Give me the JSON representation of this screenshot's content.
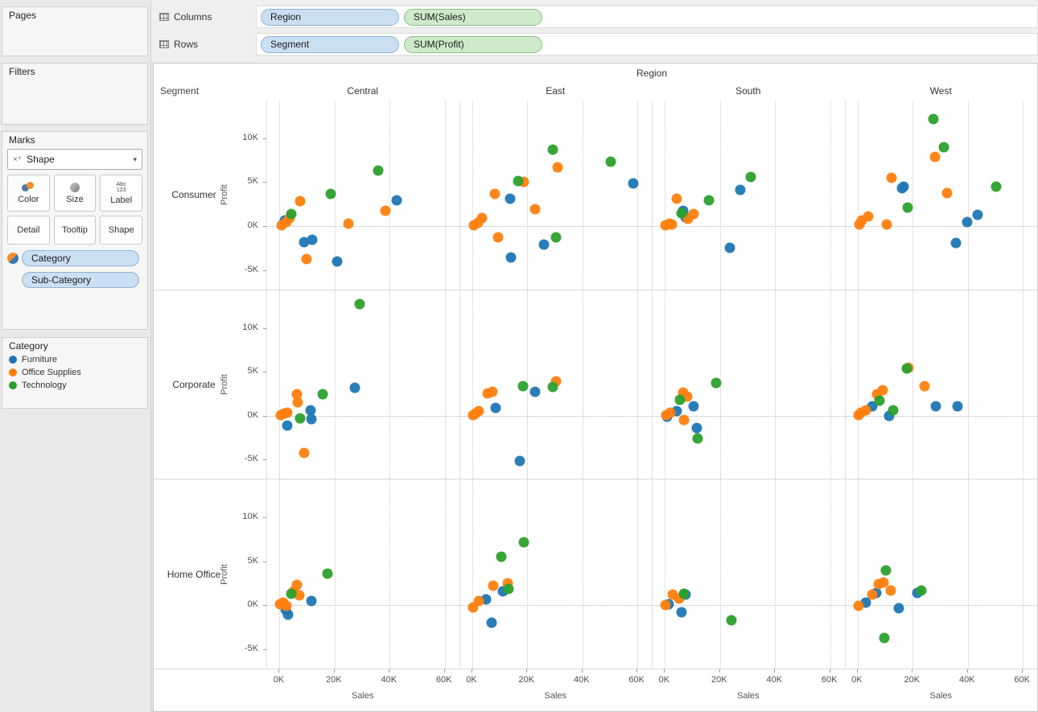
{
  "sidebar": {
    "pages_title": "Pages",
    "filters_title": "Filters",
    "marks_title": "Marks",
    "mark_type_label": "Shape",
    "mark_glyph": "×⁺",
    "chevron_glyph": "▾",
    "mark_buttons_row1": [
      {
        "label": "Color",
        "icon": "color-wheel-icon"
      },
      {
        "label": "Size",
        "icon": "size-icon"
      },
      {
        "label": "Label",
        "icon": "label-icon"
      }
    ],
    "mark_buttons_row2": [
      {
        "label": "Detail"
      },
      {
        "label": "Tooltip"
      },
      {
        "label": "Shape"
      }
    ],
    "mark_pills": [
      {
        "label": "Category",
        "has_color_icon": true
      },
      {
        "label": "Sub-Category",
        "has_color_icon": false
      }
    ],
    "legend": {
      "title": "Category",
      "items": [
        {
          "label": "Furniture",
          "color": "#1f77b4"
        },
        {
          "label": "Office Supplies",
          "color": "#ff7f0e"
        },
        {
          "label": "Technology",
          "color": "#2ca02c"
        }
      ]
    }
  },
  "shelves": {
    "columns_label": "Columns",
    "rows_label": "Rows",
    "columns_pills": [
      {
        "label": "Region",
        "type": "dimension"
      },
      {
        "label": "SUM(Sales)",
        "type": "measure"
      }
    ],
    "rows_pills": [
      {
        "label": "Segment",
        "type": "dimension"
      },
      {
        "label": "SUM(Profit)",
        "type": "measure"
      }
    ]
  },
  "chart_data": {
    "type": "scatter",
    "facet_col_title": "Region",
    "facet_row_title": "Segment",
    "columns": [
      "Central",
      "East",
      "South",
      "West"
    ],
    "rows": [
      "Consumer",
      "Corporate",
      "Home Office"
    ],
    "xlabel": "Sales",
    "ylabel": "Profit",
    "x_ticks": [
      0,
      20000,
      40000,
      60000
    ],
    "x_tick_labels": [
      "0K",
      "20K",
      "40K",
      "60K"
    ],
    "y_ticks": [
      -5000,
      0,
      5000,
      10000
    ],
    "y_tick_labels": [
      "-5K",
      "0K",
      "5K",
      "10K"
    ],
    "xlim": [
      -4500,
      65500
    ],
    "ylim": [
      -7300,
      14300
    ],
    "grid": "dotted verticals at x ticks, dotted zero line",
    "legend_position": "left sidebar",
    "series_colors": {
      "Furniture": "#1f77b4",
      "Office Supplies": "#ff7f0e",
      "Technology": "#2ca02c"
    },
    "panels": [
      {
        "row": "Consumer",
        "col": "Central",
        "points": {
          "Furniture": [
            [
              1800,
              600
            ],
            [
              8800,
              -1800
            ],
            [
              11800,
              -1600
            ],
            [
              20900,
              -4000
            ],
            [
              42600,
              2900
            ]
          ],
          "Office Supplies": [
            [
              800,
              100
            ],
            [
              2400,
              500
            ],
            [
              3800,
              900
            ],
            [
              7600,
              2800
            ],
            [
              9700,
              -3800
            ],
            [
              25000,
              300
            ],
            [
              38500,
              1700
            ]
          ],
          "Technology": [
            [
              4400,
              1400
            ],
            [
              18500,
              3700
            ],
            [
              35900,
              6300
            ]
          ]
        }
      },
      {
        "row": "Consumer",
        "col": "East",
        "points": {
          "Furniture": [
            [
              13800,
              3100
            ],
            [
              14000,
              -3600
            ],
            [
              26000,
              -2100
            ],
            [
              58500,
              4900
            ]
          ],
          "Office Supplies": [
            [
              500,
              100
            ],
            [
              2000,
              400
            ],
            [
              3500,
              900
            ],
            [
              8200,
              3700
            ],
            [
              9400,
              -1300
            ],
            [
              18800,
              5000
            ],
            [
              22900,
              1900
            ],
            [
              30900,
              6700
            ]
          ],
          "Technology": [
            [
              16800,
              5100
            ],
            [
              29400,
              8700
            ],
            [
              30500,
              -1300
            ],
            [
              50300,
              7300
            ]
          ]
        }
      },
      {
        "row": "Consumer",
        "col": "South",
        "points": {
          "Furniture": [
            [
              6500,
              1700
            ],
            [
              7400,
              1000
            ],
            [
              27400,
              4100
            ],
            [
              23500,
              -2500
            ]
          ],
          "Office Supplies": [
            [
              300,
              100
            ],
            [
              1500,
              300
            ],
            [
              2600,
              200
            ],
            [
              4400,
              3100
            ],
            [
              8500,
              800
            ],
            [
              10300,
              1400
            ]
          ],
          "Technology": [
            [
              5900,
              1500
            ],
            [
              15900,
              2900
            ],
            [
              31200,
              5600
            ]
          ]
        }
      },
      {
        "row": "Consumer",
        "col": "West",
        "points": {
          "Furniture": [
            [
              16200,
              4300
            ],
            [
              16800,
              4500
            ],
            [
              35600,
              -1900
            ],
            [
              39700,
              500
            ],
            [
              43500,
              1300
            ]
          ],
          "Office Supplies": [
            [
              500,
              200
            ],
            [
              1500,
              600
            ],
            [
              3800,
              1100
            ],
            [
              10600,
              200
            ],
            [
              12400,
              5500
            ],
            [
              28200,
              7900
            ],
            [
              32600,
              3800
            ]
          ],
          "Technology": [
            [
              18200,
              2100
            ],
            [
              27400,
              12200
            ],
            [
              31200,
              9000
            ],
            [
              50300,
              4500
            ]
          ]
        }
      },
      {
        "row": "Corporate",
        "col": "Central",
        "points": {
          "Furniture": [
            [
              2900,
              -1100
            ],
            [
              11200,
              600
            ],
            [
              11500,
              -400
            ],
            [
              27400,
              3200
            ]
          ],
          "Office Supplies": [
            [
              500,
              100
            ],
            [
              1500,
              200
            ],
            [
              2900,
              300
            ],
            [
              6200,
              2400
            ],
            [
              6500,
              1500
            ],
            [
              8800,
              -4200
            ]
          ],
          "Technology": [
            [
              7600,
              -300
            ],
            [
              15600,
              2400
            ],
            [
              29100,
              12700
            ]
          ]
        }
      },
      {
        "row": "Corporate",
        "col": "East",
        "points": {
          "Furniture": [
            [
              8500,
              900
            ],
            [
              22900,
              2700
            ],
            [
              17400,
              -5200
            ]
          ],
          "Office Supplies": [
            [
              300,
              100
            ],
            [
              1200,
              200
            ],
            [
              2400,
              500
            ],
            [
              5600,
              2500
            ],
            [
              7400,
              2700
            ],
            [
              30300,
              3900
            ]
          ],
          "Technology": [
            [
              18500,
              3400
            ],
            [
              29400,
              3300
            ]
          ]
        }
      },
      {
        "row": "Corporate",
        "col": "South",
        "points": {
          "Furniture": [
            [
              900,
              -100
            ],
            [
              4400,
              500
            ],
            [
              10300,
              1100
            ],
            [
              11500,
              -1400
            ]
          ],
          "Office Supplies": [
            [
              500,
              100
            ],
            [
              2000,
              300
            ],
            [
              6500,
              2600
            ],
            [
              8200,
              2200
            ],
            [
              6800,
              -500
            ]
          ],
          "Technology": [
            [
              5300,
              1800
            ],
            [
              11800,
              -2600
            ],
            [
              18500,
              3700
            ]
          ]
        }
      },
      {
        "row": "Corporate",
        "col": "West",
        "points": {
          "Furniture": [
            [
              5300,
              1100
            ],
            [
              11500,
              0
            ],
            [
              28500,
              1100
            ],
            [
              36200,
              1100
            ]
          ],
          "Office Supplies": [
            [
              300,
              100
            ],
            [
              1200,
              300
            ],
            [
              2900,
              600
            ],
            [
              7100,
              2400
            ],
            [
              9100,
              2900
            ],
            [
              18500,
              5500
            ],
            [
              24400,
              3400
            ]
          ],
          "Technology": [
            [
              7900,
              1700
            ],
            [
              12900,
              600
            ],
            [
              17900,
              5400
            ]
          ]
        }
      },
      {
        "row": "Home Office",
        "col": "Central",
        "points": {
          "Furniture": [
            [
              2100,
              -500
            ],
            [
              3200,
              -1100
            ],
            [
              11500,
              500
            ]
          ],
          "Office Supplies": [
            [
              300,
              100
            ],
            [
              1200,
              300
            ],
            [
              2400,
              -100
            ],
            [
              5000,
              1600
            ],
            [
              6200,
              2300
            ],
            [
              7100,
              1100
            ]
          ],
          "Technology": [
            [
              4400,
              1300
            ],
            [
              17400,
              3600
            ]
          ]
        }
      },
      {
        "row": "Home Office",
        "col": "East",
        "points": {
          "Furniture": [
            [
              5000,
              700
            ],
            [
              7100,
              -2000
            ],
            [
              11200,
              1600
            ]
          ],
          "Office Supplies": [
            [
              300,
              -200
            ],
            [
              2400,
              500
            ],
            [
              7600,
              2200
            ],
            [
              12900,
              2500
            ]
          ],
          "Technology": [
            [
              10600,
              5500
            ],
            [
              13200,
              1900
            ],
            [
              18800,
              7200
            ]
          ]
        }
      },
      {
        "row": "Home Office",
        "col": "South",
        "points": {
          "Furniture": [
            [
              1200,
              100
            ],
            [
              5900,
              -800
            ],
            [
              7600,
              1200
            ]
          ],
          "Office Supplies": [
            [
              300,
              0
            ],
            [
              2900,
              1200
            ],
            [
              5000,
              800
            ]
          ],
          "Technology": [
            [
              6800,
              1300
            ],
            [
              24100,
              -1700
            ]
          ]
        }
      },
      {
        "row": "Home Office",
        "col": "West",
        "points": {
          "Furniture": [
            [
              2900,
              300
            ],
            [
              6800,
              1400
            ],
            [
              15000,
              -300
            ],
            [
              21800,
              1400
            ]
          ],
          "Office Supplies": [
            [
              300,
              -100
            ],
            [
              5300,
              1200
            ],
            [
              7600,
              2400
            ],
            [
              9400,
              2600
            ],
            [
              12100,
              1700
            ]
          ],
          "Technology": [
            [
              10300,
              4000
            ],
            [
              9700,
              -3700
            ],
            [
              23200,
              1700
            ]
          ]
        }
      }
    ]
  }
}
